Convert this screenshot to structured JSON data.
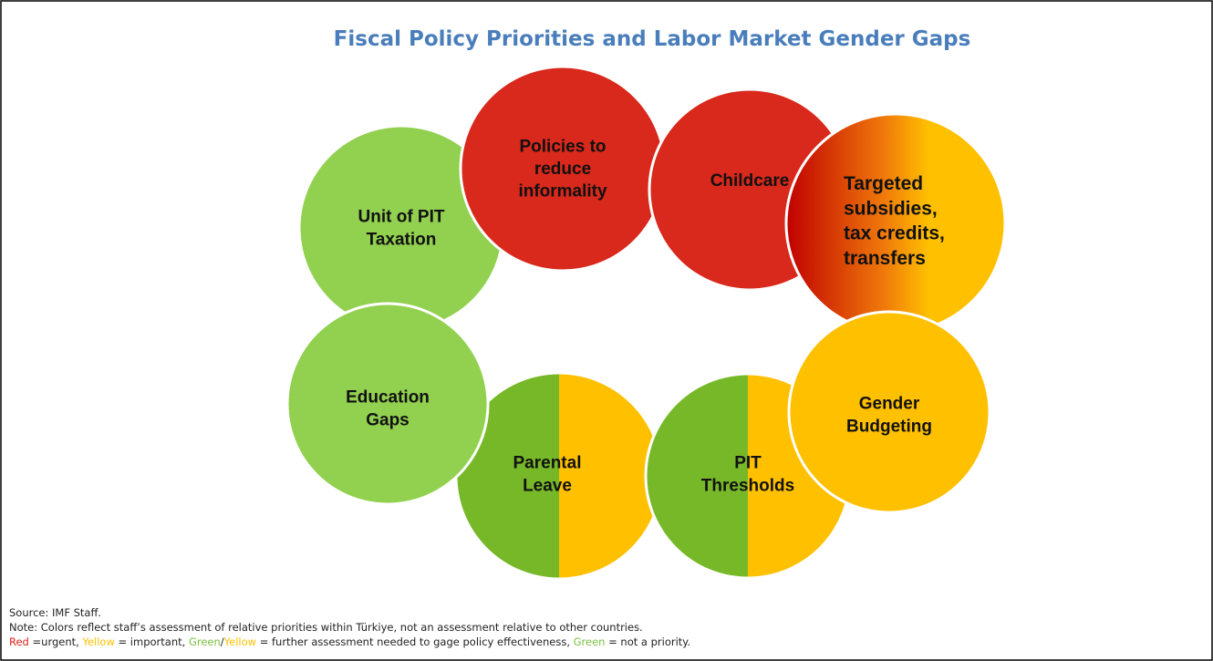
{
  "title": "Fiscal Policy Priorities and Labor Market Gender Gaps",
  "nodes": [
    {
      "lines": [
        "Unit of PIT",
        "Taxation"
      ],
      "fill": "#92d050"
    },
    {
      "lines": [
        "Policies to",
        "reduce",
        "informality"
      ],
      "fill": "#d9281c"
    },
    {
      "lines": [
        "Childcare"
      ],
      "fill": "#d9281c"
    },
    {
      "lines": [
        "Targeted",
        "subsidies,",
        "tax credits,",
        "transfers"
      ],
      "fill": "gradient"
    },
    {
      "lines": [
        "Parental",
        "Leave"
      ],
      "fill": "split"
    },
    {
      "lines": [
        "Education",
        "Gaps"
      ],
      "fill": "#92d050"
    },
    {
      "lines": [
        "PIT",
        "Thresholds"
      ],
      "fill": "split"
    },
    {
      "lines": [
        "Gender",
        "Budgeting"
      ],
      "fill": "#ffc000"
    }
  ],
  "footer": {
    "source": "Source: IMF Staff.",
    "note": "Note: Colors reflect staff’s assessment of relative priorities within Türkiye, not an assessment relative to other countries.",
    "legend": [
      {
        "text": "Red",
        "color": "#e0201a"
      },
      {
        "text": " =urgent, ",
        "color": "#222222"
      },
      {
        "text": "Yellow",
        "color": "#ffc000"
      },
      {
        "text": " = important, ",
        "color": "#222222"
      },
      {
        "text": "Green",
        "color": "#7ac143"
      },
      {
        "text": "/",
        "color": "#222222"
      },
      {
        "text": "Yellow",
        "color": "#ffc000"
      },
      {
        "text": " = further assessment needed to gage policy effectiveness, ",
        "color": "#222222"
      },
      {
        "text": "Green",
        "color": "#7ac143"
      },
      {
        "text": " = not a priority.",
        "color": "#222222"
      }
    ]
  }
}
